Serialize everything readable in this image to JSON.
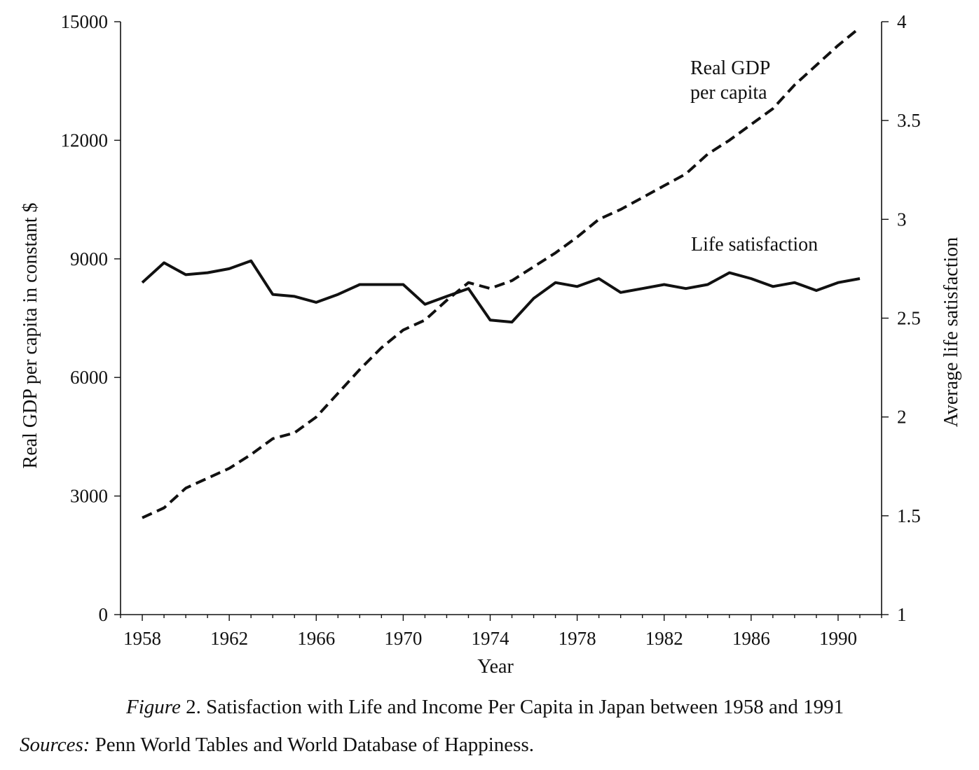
{
  "chart_data": {
    "type": "line",
    "title": "",
    "xlabel": "Year",
    "ylabel_left": "Real GDP per capita in constant $",
    "ylabel_right": "Average life satisfaction",
    "xlim": [
      1957,
      1992
    ],
    "ylim_left": [
      0,
      15000
    ],
    "ylim_right": [
      1,
      4
    ],
    "x_ticks": [
      1958,
      1962,
      1966,
      1970,
      1974,
      1978,
      1982,
      1986,
      1990
    ],
    "y_left_ticks": [
      0,
      3000,
      6000,
      9000,
      12000,
      15000
    ],
    "y_right_ticks": [
      1,
      1.5,
      2,
      2.5,
      3,
      3.5,
      4
    ],
    "y_right_tick_labels": [
      "1",
      "1.5",
      "2",
      "2.5",
      "3",
      "3.5",
      "4"
    ],
    "x": [
      1958,
      1959,
      1960,
      1961,
      1962,
      1963,
      1964,
      1965,
      1966,
      1967,
      1968,
      1969,
      1970,
      1971,
      1972,
      1973,
      1974,
      1975,
      1976,
      1977,
      1978,
      1979,
      1980,
      1981,
      1982,
      1983,
      1984,
      1985,
      1986,
      1987,
      1988,
      1989,
      1990,
      1991
    ],
    "series": [
      {
        "name": "Real GDP per capita",
        "label": [
          "Real GDP",
          "per capita"
        ],
        "axis": "left",
        "style": "dashed",
        "values": [
          2450,
          2700,
          3200,
          3450,
          3700,
          4050,
          4450,
          4600,
          5000,
          5600,
          6200,
          6750,
          7200,
          7450,
          7950,
          8400,
          8250,
          8450,
          8800,
          9150,
          9550,
          10000,
          10250,
          10550,
          10850,
          11150,
          11650,
          12000,
          12400,
          12800,
          13400,
          13900,
          14400,
          14850
        ]
      },
      {
        "name": "Life satisfaction",
        "label": [
          "Life satisfaction"
        ],
        "axis": "right",
        "style": "solid",
        "values": [
          2.68,
          2.78,
          2.72,
          2.73,
          2.75,
          2.79,
          2.62,
          2.61,
          2.58,
          2.62,
          2.67,
          2.67,
          2.67,
          2.57,
          2.61,
          2.65,
          2.49,
          2.48,
          2.6,
          2.68,
          2.66,
          2.7,
          2.63,
          2.65,
          2.67,
          2.65,
          2.67,
          2.73,
          2.7,
          2.66,
          2.68,
          2.64,
          2.68,
          2.7
        ]
      }
    ]
  },
  "caption": {
    "figure_label": "Figure",
    "text": " 2. Satisfaction with Life and Income Per Capita in Japan between 1958 and 1991"
  },
  "sources": {
    "label": "Sources:",
    "text": " Penn World Tables and World Database of Happiness."
  }
}
